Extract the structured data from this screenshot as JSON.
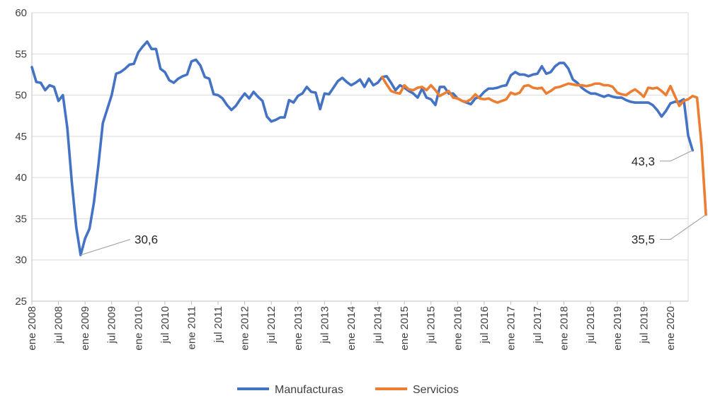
{
  "chart_data": {
    "type": "line",
    "title": "",
    "xlabel": "",
    "ylabel": "",
    "ylim": [
      25,
      60
    ],
    "yticks": [
      25,
      30,
      35,
      40,
      45,
      50,
      55,
      60
    ],
    "grid": "horizontal",
    "legend_position": "bottom",
    "x_start": "2008-01",
    "x_end": "2020-04",
    "x_tick_labels": [
      "ene 2008",
      "jul 2008",
      "ene 2009",
      "jul 2009",
      "ene 2010",
      "jul 2010",
      "ene 2011",
      "jul 2011",
      "ene 2012",
      "jul 2012",
      "ene 2013",
      "jul 2013",
      "ene 2014",
      "jul 2014",
      "ene 2015",
      "jul 2015",
      "ene 2016",
      "jul 2016",
      "ene 2017",
      "jul 2017",
      "ene 2018",
      "jul 2018",
      "ene 2019",
      "jul 2019",
      "ene 2020"
    ],
    "series": [
      {
        "name": "Manufacturas",
        "color": "#4472C4",
        "start": "2008-01",
        "values": [
          53.4,
          51.6,
          51.5,
          50.6,
          51.2,
          51.0,
          49.3,
          50.0,
          46.0,
          39.5,
          34.0,
          30.6,
          32.6,
          33.8,
          37.0,
          41.5,
          46.6,
          48.3,
          50.0,
          52.6,
          52.8,
          53.2,
          53.7,
          53.8,
          55.2,
          55.9,
          56.5,
          55.6,
          55.6,
          53.2,
          52.8,
          51.8,
          51.5,
          52.0,
          52.3,
          52.5,
          54.1,
          54.3,
          53.6,
          52.2,
          52.0,
          50.1,
          50.0,
          49.6,
          48.8,
          48.2,
          48.7,
          49.5,
          50.2,
          49.6,
          50.4,
          49.8,
          49.3,
          47.4,
          46.8,
          47.0,
          47.3,
          47.3,
          49.4,
          49.1,
          49.9,
          50.2,
          51.0,
          50.4,
          50.3,
          48.3,
          50.2,
          50.1,
          50.9,
          51.7,
          52.1,
          51.6,
          51.2,
          51.5,
          51.9,
          51.0,
          52.0,
          51.2,
          51.5,
          52.2,
          52.3,
          51.5,
          50.6,
          51.2,
          50.9,
          50.5,
          50.2,
          49.7,
          50.8,
          49.7,
          49.5,
          48.8,
          51.0,
          51.0,
          50.2,
          50.2,
          49.6,
          49.3,
          49.1,
          48.9,
          49.6,
          49.8,
          50.4,
          50.8,
          50.8,
          50.9,
          51.1,
          51.2,
          52.4,
          52.8,
          52.5,
          52.5,
          52.3,
          52.5,
          52.6,
          53.5,
          52.6,
          52.8,
          53.5,
          53.9,
          53.9,
          53.2,
          51.9,
          51.5,
          50.9,
          50.5,
          50.2,
          50.2,
          50.0,
          49.8,
          50.0,
          49.8,
          49.7,
          49.7,
          49.4,
          49.2,
          49.1,
          49.1,
          49.1,
          49.1,
          48.8,
          48.2,
          47.4,
          48.1,
          49.0,
          49.2,
          49.2,
          49.5,
          45.1,
          43.3
        ]
      },
      {
        "name": "Servicios",
        "color": "#ED7D31",
        "start": "2014-08",
        "values": [
          52.2,
          51.3,
          50.5,
          50.3,
          50.2,
          51.2,
          50.7,
          50.6,
          50.9,
          51.0,
          50.6,
          51.2,
          50.6,
          49.9,
          50.2,
          50.5,
          49.7,
          49.6,
          49.3,
          49.2,
          49.5,
          50.1,
          49.6,
          49.5,
          49.6,
          49.3,
          49.1,
          49.3,
          49.5,
          50.3,
          50.1,
          50.3,
          51.1,
          51.2,
          50.9,
          50.8,
          50.9,
          50.2,
          50.5,
          50.9,
          51.0,
          51.2,
          51.4,
          51.3,
          51.2,
          51.2,
          51.1,
          51.2,
          51.4,
          51.4,
          51.2,
          51.2,
          51.0,
          50.3,
          50.1,
          50.0,
          50.4,
          50.7,
          50.3,
          49.8,
          50.9,
          50.8,
          50.9,
          50.5,
          50.0,
          51.1,
          49.9,
          48.7,
          49.3,
          49.5,
          49.9,
          49.7,
          44.0,
          35.5
        ]
      }
    ],
    "annotations": [
      {
        "text": "30,6"
      },
      {
        "text": "43,3"
      },
      {
        "text": "35,5"
      }
    ]
  }
}
